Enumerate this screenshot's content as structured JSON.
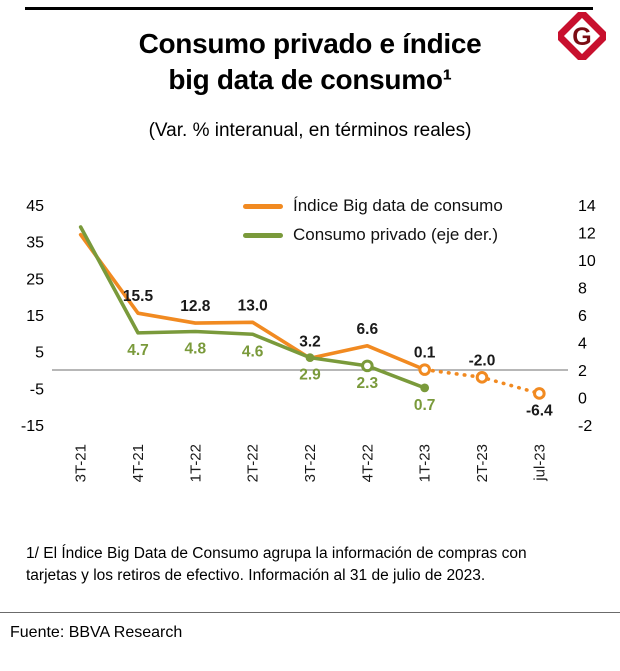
{
  "page": {
    "title_line1": "Consumo privado e índice",
    "title_line2": "big data de consumo¹",
    "subtitle": "(Var. % interanual, en términos reales)",
    "footnote_line1": "1/ El Índice Big Data de Consumo agrupa la información de compras con",
    "footnote_line2": "tarjetas y los retiros de efectivo. Información al 31 de julio de 2023.",
    "source": "Fuente: BBVA Research",
    "logo_letter": "G",
    "logo_color": "#C8102E",
    "logo_letter_color": "#7A0C14"
  },
  "chart_data": {
    "type": "line",
    "title": "Consumo privado e índice big data de consumo",
    "subtitle": "(Var. % interanual, en términos reales)",
    "categories": [
      "3T-21",
      "4T-21",
      "1T-22",
      "2T-22",
      "3T-22",
      "4T-22",
      "1T-23",
      "2T-23",
      "jul-23"
    ],
    "series": [
      {
        "name": "Índice Big data de consumo",
        "axis": "left",
        "color": "#F18A21",
        "values": [
          36.9,
          15.5,
          12.8,
          13.0,
          3.2,
          6.6,
          0.1,
          -2.0,
          -6.4
        ],
        "labels": [
          "",
          "15.5",
          "12.8",
          "13.0",
          "3.2",
          "6.6",
          "0.1",
          "-2.0",
          "-6.4"
        ],
        "label_positions": [
          "",
          "above",
          "above",
          "above",
          "above",
          "above",
          "above",
          "above",
          "below"
        ],
        "label_color": "#1a1a1a",
        "dashed_from_index": 6,
        "open_marker_indices": [
          6,
          7,
          8
        ],
        "filled_marker_indices": []
      },
      {
        "name": "Consumo privado (eje der.)",
        "axis": "right",
        "color": "#7A9A3B",
        "values": [
          12.4,
          4.7,
          4.8,
          4.6,
          2.9,
          2.3,
          0.7,
          null,
          null
        ],
        "labels": [
          "",
          "4.7",
          "4.8",
          "4.6",
          "2.9",
          "2.3",
          "0.7",
          "",
          ""
        ],
        "label_positions": [
          "",
          "below",
          "below",
          "below",
          "below",
          "below",
          "below",
          "",
          ""
        ],
        "label_color": "#7A9A3B",
        "dashed_from_index": null,
        "open_marker_indices": [
          5
        ],
        "filled_marker_indices": [
          4,
          6
        ]
      }
    ],
    "left_axis": {
      "ticks": [
        45,
        35,
        25,
        15,
        5,
        -5,
        -15
      ],
      "min": -15,
      "max": 45
    },
    "right_axis": {
      "ticks": [
        14,
        12,
        10,
        8,
        6,
        4,
        2,
        0,
        -2
      ],
      "min": -2,
      "max": 14
    },
    "grid": false,
    "legend_position": "top-inside",
    "axis_line_value_left": 0
  }
}
